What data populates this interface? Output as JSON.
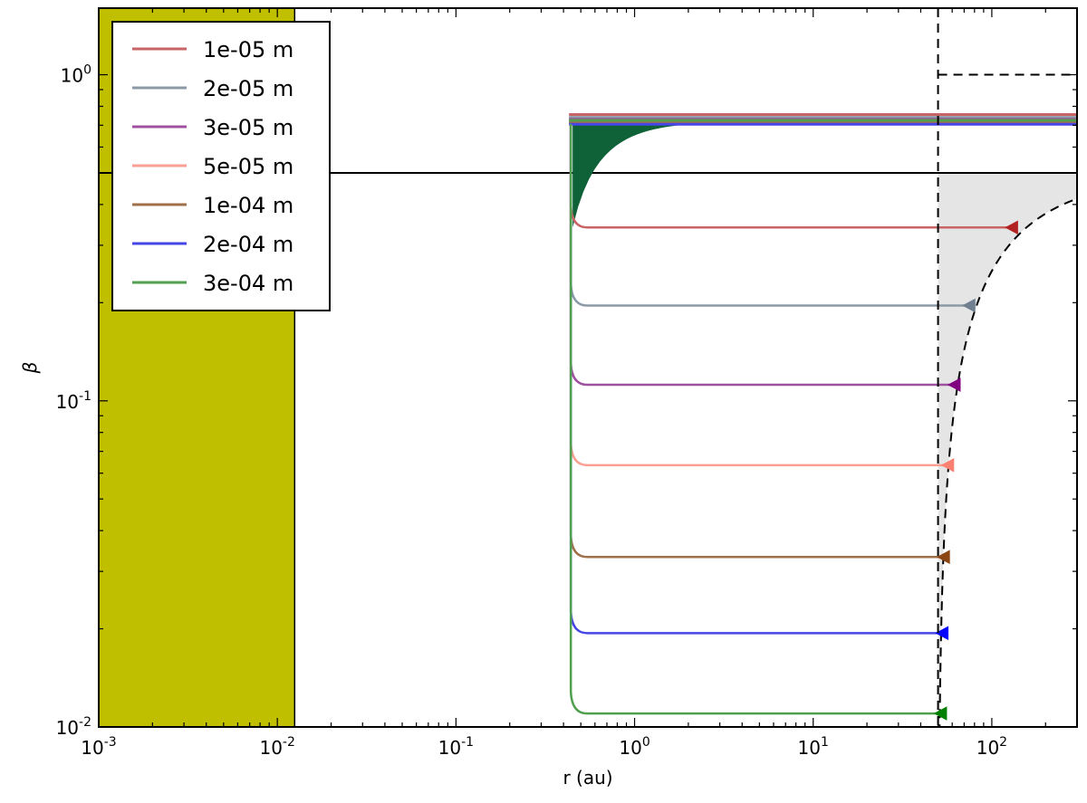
{
  "chart_data": {
    "type": "line",
    "xlabel": "r (au)",
    "ylabel": "β",
    "xscale": "log",
    "yscale": "log",
    "xlim": [
      0.001,
      300
    ],
    "ylim": [
      0.01,
      1.6
    ],
    "legend_placement": "top-left",
    "x_ticks": [
      {
        "base": "10",
        "exp": "-3",
        "value": 0.001
      },
      {
        "base": "10",
        "exp": "-2",
        "value": 0.01
      },
      {
        "base": "10",
        "exp": "-1",
        "value": 0.1
      },
      {
        "base": "10",
        "exp": "0",
        "value": 1
      },
      {
        "base": "10",
        "exp": "1",
        "value": 10
      },
      {
        "base": "10",
        "exp": "2",
        "value": 100
      }
    ],
    "y_ticks": [
      {
        "base": "10",
        "exp": "-2",
        "value": 0.01
      },
      {
        "base": "10",
        "exp": "-1",
        "value": 0.1
      },
      {
        "base": "10",
        "exp": "0",
        "value": 1
      }
    ],
    "shaded_region_r_max": 0.0125,
    "shaded_region_color": "#bfbf00",
    "start_r": 0.45,
    "vertical_dashed_line_r": 50,
    "horizontal_dashed_line_beta": 1.0,
    "horizontal_solid_line_beta": 0.5,
    "upper_band": {
      "color": "#0f6238",
      "beta_top": 0.72,
      "edge_beta_min": 0.34
    },
    "gray_region_color": "#e5e5e5",
    "series": [
      {
        "name": "1e-05 m",
        "color": "#c86464",
        "marker_color": "#b22222",
        "beta": 0.34,
        "beta_upper": 0.755,
        "r_end": 130
      },
      {
        "name": "2e-05 m",
        "color": "#8c9aa8",
        "marker_color": "#708090",
        "beta": 0.196,
        "beta_upper": 0.74,
        "r_end": 75
      },
      {
        "name": "3e-05 m",
        "color": "#a050a0",
        "marker_color": "#800080",
        "beta": 0.112,
        "beta_upper": 0.73,
        "r_end": 62
      },
      {
        "name": "5e-05 m",
        "color": "#fa9f91",
        "marker_color": "#fa8072",
        "beta": 0.0635,
        "beta_upper": 0.72,
        "r_end": 57
      },
      {
        "name": "1e-04 m",
        "color": "#a0704a",
        "marker_color": "#8b4513",
        "beta": 0.0332,
        "beta_upper": 0.715,
        "r_end": 54
      },
      {
        "name": "2e-04 m",
        "color": "#4646e6",
        "marker_color": "#0000ff",
        "beta": 0.0194,
        "beta_upper": 0.705,
        "r_end": 53
      },
      {
        "name": "3e-04 m",
        "color": "#50a050",
        "marker_color": "#008000",
        "beta": 0.011,
        "beta_upper": 0.725,
        "r_end": 52
      }
    ]
  }
}
